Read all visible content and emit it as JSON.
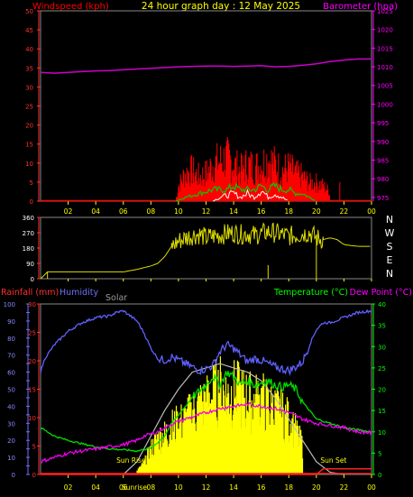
{
  "header": {
    "left_label": "Windspeed (kph)",
    "center_title": "24 hour graph day : 12 May 2025",
    "right_label": "Barometer (hpa)"
  },
  "colors": {
    "wind": "#ff0000",
    "gust": "#ff0000",
    "wind_avg": "#00cc00",
    "wind_low": "#ffffff",
    "barometer": "#cc00cc",
    "direction": "#dddd00",
    "rain": "#ff2020",
    "humidity": "#6060ff",
    "solar": "#ffff00",
    "solar_theory": "#bbbbbb",
    "temperature": "#00dd00",
    "dew_point": "#ee00ee",
    "tick_left": "#ff3030",
    "tick_right": "#ff00ff",
    "tick_time": "#ffff00",
    "tick_temp": "#00ff00",
    "tick_rain": "#ff3030",
    "tick_hum": "#7070ff",
    "solar_label": "#999999"
  },
  "chart_data": [
    {
      "id": "wind_baro",
      "type": "line",
      "x_ticks": [
        "02",
        "04",
        "06",
        "08",
        "10",
        "12",
        "14",
        "16",
        "18",
        "20",
        "22",
        "00"
      ],
      "xlim": [
        0,
        24
      ],
      "left_axis": {
        "label": "Windspeed (kph)",
        "ylim": [
          0,
          50
        ],
        "ticks": [
          0,
          5,
          10,
          15,
          20,
          25,
          30,
          35,
          40,
          45,
          50
        ]
      },
      "right_axis": {
        "label": "Barometer (hpa)",
        "ylim": [
          974,
          1025
        ],
        "ticks": [
          975,
          980,
          985,
          990,
          995,
          1000,
          1005,
          1010,
          1015,
          1020,
          1025
        ]
      },
      "series": [
        {
          "axis": "right",
          "x": [
            0,
            1,
            2,
            3,
            4,
            5,
            6,
            7,
            8,
            9,
            10,
            11,
            12,
            13,
            14,
            15,
            16,
            17,
            18,
            19,
            20,
            21,
            22,
            23,
            24
          ],
          "values": [
            1008.5,
            1008.3,
            1008.5,
            1008.7,
            1008.9,
            1009.0,
            1009.2,
            1009.4,
            1009.6,
            1009.8,
            1010.0,
            1010.1,
            1010.2,
            1010.2,
            1010.1,
            1010.2,
            1010.3,
            1010.0,
            1010.1,
            1010.4,
            1010.8,
            1011.4,
            1011.8,
            1012.1,
            1012.1
          ]
        },
        {
          "axis": "left",
          "x": [
            0,
            9.8,
            10.0,
            10.5,
            11.0,
            11.5,
            12.0,
            12.5,
            13.0,
            13.5,
            14.0,
            14.5,
            15.0,
            15.5,
            16.0,
            16.5,
            17.0,
            17.5,
            18.0,
            18.5,
            19.0,
            19.5,
            20.0,
            20.5,
            21.0,
            24
          ],
          "values": [
            0,
            0,
            5,
            9,
            10,
            8,
            9,
            12,
            13,
            14,
            12,
            10,
            12,
            11,
            12,
            14,
            12,
            10,
            11,
            9,
            8,
            6,
            6,
            5,
            3,
            0
          ]
        },
        {
          "axis": "left",
          "x": [
            0,
            9.8,
            10.5,
            11.5,
            12.5,
            13.0,
            13.5,
            14.0,
            14.5,
            15.0,
            15.5,
            16.0,
            16.5,
            17.0,
            17.5,
            18.0,
            18.5,
            19.0,
            20.0,
            24
          ],
          "values": [
            0,
            0,
            1,
            2,
            3,
            3,
            3,
            4,
            3,
            3,
            3,
            4,
            3,
            4,
            3,
            3,
            2,
            2,
            0,
            0
          ]
        },
        {
          "axis": "left",
          "x": [
            0,
            12.5,
            13.0,
            14.0,
            14.5,
            15.0,
            15.5,
            16.0,
            16.5,
            17.0,
            17.5,
            18.0,
            24
          ],
          "values": [
            0,
            0,
            1,
            2,
            1,
            2,
            1,
            3,
            1,
            2,
            1,
            0,
            0
          ]
        }
      ]
    },
    {
      "id": "direction",
      "type": "line",
      "x_ticks": [
        "02",
        "04",
        "06",
        "08",
        "10",
        "12",
        "14",
        "16",
        "18",
        "20",
        "22",
        "00"
      ],
      "xlim": [
        0,
        24
      ],
      "ylim": [
        0,
        360
      ],
      "y_ticks": [
        0,
        90,
        180,
        270,
        360
      ],
      "compass_labels": [
        "N",
        "W",
        "S",
        "E",
        "N"
      ],
      "series": [
        {
          "x": [
            0,
            0.5,
            1,
            2,
            3,
            4,
            5,
            6,
            7,
            8,
            8.5,
            9,
            9.5,
            10,
            10.5,
            11,
            11.5,
            12,
            12.5,
            13,
            13.5,
            14,
            14.5,
            15,
            15.5,
            16,
            16.5,
            17,
            17.5,
            18,
            18.5,
            19,
            19.5,
            20,
            20.5,
            21,
            21.5,
            22,
            23,
            24
          ],
          "values": [
            0,
            40,
            40,
            40,
            40,
            40,
            40,
            40,
            55,
            75,
            90,
            130,
            190,
            220,
            240,
            255,
            260,
            240,
            250,
            255,
            265,
            270,
            260,
            265,
            255,
            265,
            275,
            270,
            260,
            250,
            255,
            265,
            270,
            240,
            230,
            240,
            230,
            200,
            190,
            190
          ]
        }
      ]
    },
    {
      "id": "weather",
      "type": "line",
      "x_ticks": [
        "02",
        "04",
        "06",
        "08",
        "10",
        "12",
        "14",
        "16",
        "18",
        "20",
        "22",
        "00"
      ],
      "xlim": [
        0,
        24
      ],
      "rain_axis": {
        "label": "Rainfall (mm)",
        "ylim": [
          0,
          30
        ],
        "ticks": [
          0,
          5,
          10,
          15,
          20,
          25,
          30
        ]
      },
      "humidity_axis": {
        "label": "Humidity",
        "ylim": [
          0,
          100
        ],
        "ticks": [
          0,
          5,
          10,
          15,
          20,
          25,
          30,
          35,
          40,
          45,
          50,
          55,
          60,
          65,
          70,
          75,
          80,
          85,
          90,
          95,
          100
        ]
      },
      "temp_axis": {
        "label": "Temperature (°C)",
        "ylim": [
          0,
          40
        ],
        "ticks": [
          0,
          5,
          10,
          15,
          20,
          25,
          30,
          35,
          40
        ]
      },
      "solar_label": "Solar",
      "dew_label": "Dew Point (°C)",
      "sun_rise_label": "Sun Rise",
      "sun_set_label": "Sun Set",
      "sunrise_tick": "Sunrise",
      "series": [
        {
          "name": "Humidity",
          "x": [
            0,
            0.3,
            1,
            2,
            3,
            4,
            5,
            5.5,
            6,
            6.5,
            7,
            7.5,
            8,
            8.5,
            9,
            9.5,
            10,
            10.5,
            11,
            11.5,
            12,
            12.5,
            13,
            13.5,
            14,
            14.5,
            15,
            15.5,
            16,
            16.5,
            17,
            17.5,
            18,
            18.5,
            19,
            19.5,
            20,
            20.5,
            21,
            22,
            23,
            24
          ],
          "values": [
            60,
            68,
            76,
            84,
            89,
            92,
            93,
            95,
            96,
            93,
            90,
            83,
            74,
            68,
            67,
            69,
            67,
            65,
            63,
            61,
            62,
            64,
            72,
            76,
            74,
            70,
            66,
            68,
            67,
            65,
            63,
            62,
            61,
            63,
            66,
            76,
            85,
            89,
            89,
            92,
            95,
            96
          ]
        },
        {
          "name": "Temperature",
          "x": [
            0,
            1,
            2,
            3,
            4,
            5,
            6,
            7,
            8,
            8.5,
            9,
            9.5,
            10,
            10.5,
            11,
            11.5,
            12,
            12.5,
            13,
            13.5,
            14,
            14.5,
            15,
            15.5,
            16,
            16.5,
            17,
            17.5,
            18,
            18.5,
            19,
            19.5,
            20,
            21,
            22,
            23,
            24
          ],
          "values": [
            11,
            9,
            8,
            7.2,
            6.5,
            6,
            5.8,
            5.5,
            6.2,
            7.5,
            9,
            12,
            14,
            16,
            18,
            19.5,
            21,
            23,
            21,
            24,
            23,
            21,
            22,
            21,
            21.5,
            22,
            21,
            20.5,
            21,
            20,
            17,
            15,
            13,
            12,
            11,
            10.5,
            10
          ]
        },
        {
          "name": "Dew Point",
          "x": [
            0,
            1,
            2,
            3,
            4,
            5,
            6,
            7,
            7.5,
            8,
            8.5,
            9,
            10,
            11,
            12,
            13,
            14,
            15,
            16,
            17,
            18,
            19,
            20,
            21,
            22,
            23,
            24
          ],
          "values": [
            3,
            4,
            5,
            5.5,
            6,
            6.5,
            7,
            8,
            9,
            9.5,
            10,
            11,
            12.5,
            13.5,
            14.5,
            15.5,
            16,
            16.5,
            16,
            15.5,
            14.5,
            13,
            12,
            11.5,
            11,
            10,
            9.8
          ]
        },
        {
          "name": "Rainfall",
          "x": [
            0,
            20,
            20.5,
            21,
            24
          ],
          "values": [
            0,
            0,
            1,
            1,
            1
          ]
        },
        {
          "name": "Solar theoretical",
          "x": [
            6,
            7,
            8,
            9,
            10,
            11,
            12,
            13,
            14,
            15,
            16,
            17,
            18,
            19,
            20,
            21,
            22
          ],
          "values": [
            0,
            3,
            9,
            15,
            20,
            24,
            25,
            26,
            25,
            24,
            22,
            18,
            13,
            8,
            3,
            0.5,
            0
          ]
        },
        {
          "name": "Solar measured",
          "x": [
            7,
            7.5,
            8,
            8.5,
            9,
            9.5,
            10,
            10.5,
            11,
            11.5,
            12,
            12.5,
            13,
            13.5,
            14,
            14.5,
            15,
            15.5,
            16,
            16.5,
            17,
            17.5,
            18,
            18.5,
            19
          ],
          "values": [
            1,
            3,
            7,
            10,
            11,
            13,
            14,
            15,
            17,
            19,
            20,
            22,
            24,
            22,
            23,
            22,
            21,
            20,
            21,
            19,
            18,
            17,
            15,
            12,
            8
          ]
        }
      ]
    }
  ]
}
